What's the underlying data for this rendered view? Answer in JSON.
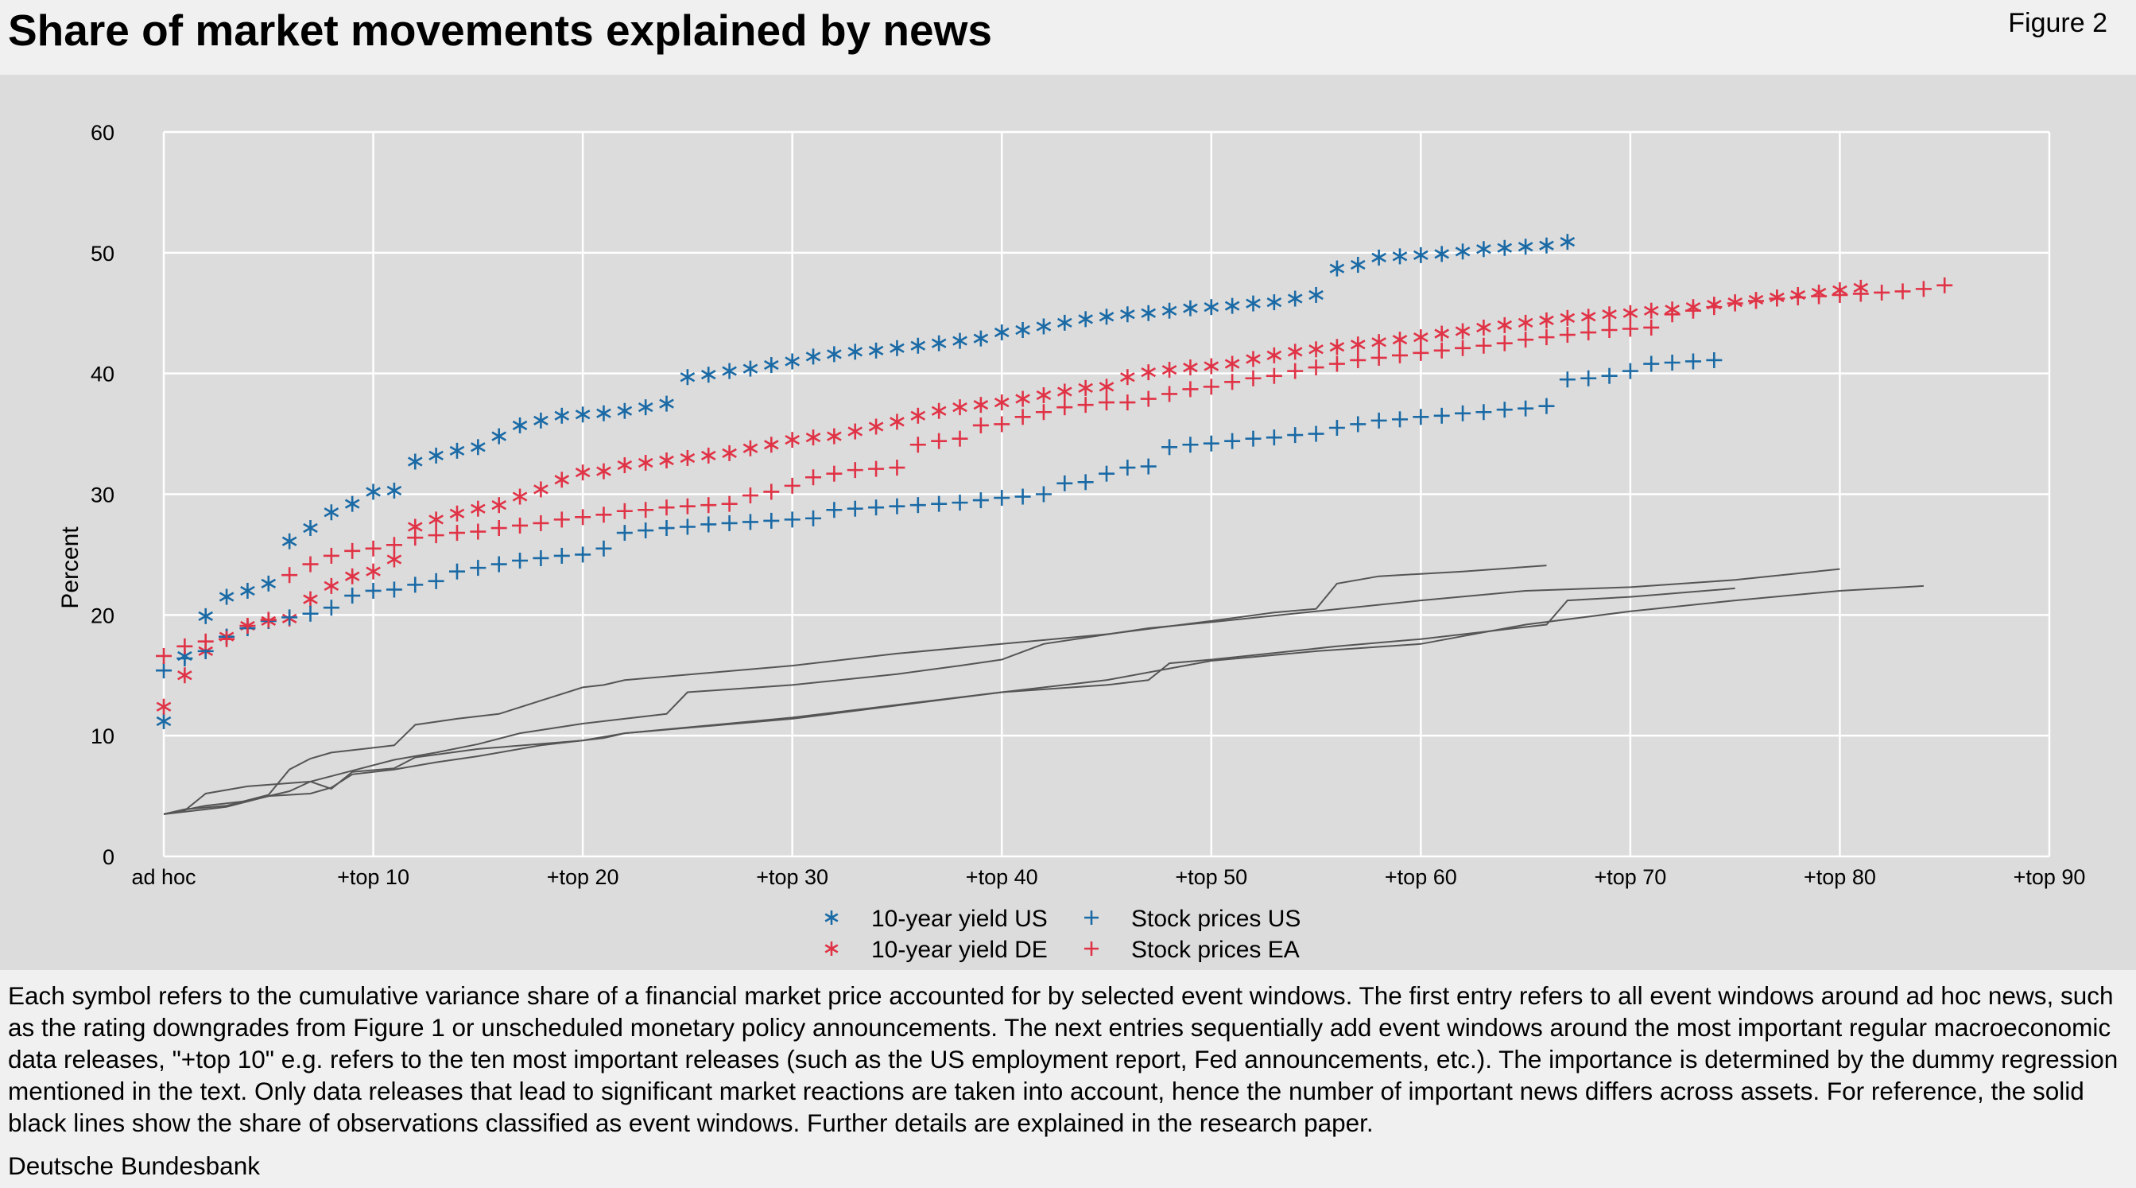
{
  "header": {
    "title": "Share of market movements explained by news",
    "figure_label": "Figure 2"
  },
  "footer": {
    "notes": "Each symbol refers to the cumulative variance share of a financial market price accounted for by selected event windows. The first entry refers to all event windows around ad hoc news, such as the rating downgrades from Figure 1 or unscheduled monetary policy announcements. The next entries sequentially add event windows around the most important regular macroeconomic data releases, \"+top 10\" e.g. refers to the ten most important releases (such as the US employment report, Fed announcements, etc.). The importance is determined by the dummy regression mentioned in the text. Only data releases that lead to significant market reactions are taken into account, hence the number of important news differs across assets. For reference, the solid black lines show the share of observations classified as event windows. Further details are explained in the research paper.",
    "source": "Deutsche Bundesbank"
  },
  "chart_data": {
    "type": "scatter",
    "title": "Share of market movements explained by news",
    "xlabel": "",
    "ylabel": "Percent",
    "xlim": [
      0,
      90
    ],
    "ylim": [
      0,
      60
    ],
    "x_ticks": [
      {
        "value": 0,
        "label": "ad hoc"
      },
      {
        "value": 10,
        "label": "+top 10"
      },
      {
        "value": 20,
        "label": "+top 20"
      },
      {
        "value": 30,
        "label": "+top 30"
      },
      {
        "value": 40,
        "label": "+top 40"
      },
      {
        "value": 50,
        "label": "+top 50"
      },
      {
        "value": 60,
        "label": "+top 60"
      },
      {
        "value": 70,
        "label": "+top 70"
      },
      {
        "value": 80,
        "label": "+top 80"
      },
      {
        "value": 90,
        "label": "+top 90"
      }
    ],
    "y_ticks": [
      0,
      10,
      20,
      30,
      40,
      50,
      60
    ],
    "grid": true,
    "legend_position": "bottom-center",
    "series": [
      {
        "name": "10-year yield US",
        "marker": "asterisk",
        "color": "#1a6aa6",
        "values": [
          11.2,
          16.6,
          19.9,
          21.5,
          22.0,
          22.6,
          26.1,
          27.2,
          28.5,
          29.2,
          30.2,
          30.3,
          32.7,
          33.2,
          33.6,
          33.9,
          34.8,
          35.7,
          36.1,
          36.5,
          36.6,
          36.7,
          36.9,
          37.2,
          37.5,
          39.7,
          39.9,
          40.2,
          40.4,
          40.7,
          41.0,
          41.4,
          41.6,
          41.8,
          41.9,
          42.1,
          42.3,
          42.5,
          42.7,
          42.9,
          43.4,
          43.6,
          43.9,
          44.2,
          44.5,
          44.7,
          44.9,
          45.0,
          45.2,
          45.4,
          45.5,
          45.6,
          45.8,
          45.9,
          46.2,
          46.5,
          48.7,
          49.0,
          49.6,
          49.7,
          49.8,
          49.9,
          50.1,
          50.3,
          50.4,
          50.5,
          50.6,
          50.9
        ]
      },
      {
        "name": "10-year yield DE",
        "marker": "asterisk",
        "color": "#e03346",
        "values": [
          12.4,
          15.0,
          17.0,
          18.2,
          19.1,
          19.5,
          19.7,
          21.3,
          22.4,
          23.2,
          23.6,
          24.6,
          27.3,
          27.9,
          28.4,
          28.8,
          29.1,
          29.8,
          30.4,
          31.2,
          31.8,
          31.9,
          32.4,
          32.6,
          32.8,
          33.0,
          33.2,
          33.4,
          33.8,
          34.1,
          34.5,
          34.7,
          34.8,
          35.2,
          35.6,
          36.0,
          36.5,
          36.9,
          37.2,
          37.4,
          37.6,
          37.9,
          38.2,
          38.5,
          38.8,
          38.9,
          39.7,
          40.1,
          40.3,
          40.5,
          40.6,
          40.8,
          41.2,
          41.5,
          41.8,
          42.0,
          42.2,
          42.4,
          42.6,
          42.8,
          43.0,
          43.3,
          43.5,
          43.8,
          44.0,
          44.2,
          44.4,
          44.6,
          44.7,
          44.9,
          45.0,
          45.2,
          45.3,
          45.5,
          45.7,
          45.9,
          46.1,
          46.3,
          46.5,
          46.7,
          46.9,
          47.1
        ]
      },
      {
        "name": "Stock prices US",
        "marker": "plus",
        "color": "#1a6aa6",
        "values": [
          15.4,
          16.4,
          17.0,
          18.2,
          18.9,
          19.5,
          19.8,
          20.1,
          20.6,
          21.6,
          22.0,
          22.1,
          22.5,
          22.8,
          23.6,
          23.9,
          24.2,
          24.5,
          24.7,
          24.9,
          25.0,
          25.5,
          26.8,
          27.0,
          27.2,
          27.3,
          27.5,
          27.6,
          27.7,
          27.8,
          27.9,
          28.0,
          28.7,
          28.8,
          28.9,
          29.0,
          29.1,
          29.2,
          29.3,
          29.5,
          29.7,
          29.8,
          30.0,
          30.9,
          31.0,
          31.7,
          32.2,
          32.3,
          33.9,
          34.1,
          34.2,
          34.4,
          34.6,
          34.7,
          34.9,
          35.0,
          35.5,
          35.8,
          36.1,
          36.2,
          36.4,
          36.5,
          36.7,
          36.8,
          37.0,
          37.1,
          37.3,
          39.5,
          39.6,
          39.8,
          40.2,
          40.8,
          40.9,
          41.0,
          41.1
        ]
      },
      {
        "name": "Stock prices EA",
        "marker": "plus",
        "color": "#e03346",
        "values": [
          16.6,
          17.4,
          17.8,
          18.0,
          19.1,
          19.6,
          23.3,
          24.2,
          24.9,
          25.3,
          25.5,
          25.8,
          26.4,
          26.6,
          26.8,
          26.9,
          27.2,
          27.4,
          27.6,
          27.9,
          28.1,
          28.3,
          28.6,
          28.7,
          28.9,
          29.0,
          29.1,
          29.2,
          29.9,
          30.2,
          30.7,
          31.4,
          31.7,
          32.0,
          32.1,
          32.2,
          34.1,
          34.4,
          34.6,
          35.7,
          35.8,
          36.4,
          36.8,
          37.2,
          37.4,
          37.6,
          37.6,
          37.9,
          38.3,
          38.7,
          38.9,
          39.3,
          39.6,
          39.8,
          40.2,
          40.5,
          40.8,
          41.1,
          41.3,
          41.5,
          41.7,
          41.9,
          42.1,
          42.3,
          42.5,
          42.8,
          43.0,
          43.2,
          43.4,
          43.6,
          43.7,
          43.8,
          44.9,
          45.2,
          45.5,
          45.8,
          46.0,
          46.2,
          46.3,
          46.4,
          46.5,
          46.6,
          46.7,
          46.8,
          47.0,
          47.3
        ]
      }
    ],
    "reference_lines": [
      {
        "color": "#555555",
        "points": [
          [
            0,
            3.5
          ],
          [
            1,
            3.8
          ],
          [
            2,
            5.2
          ],
          [
            4,
            5.8
          ],
          [
            7,
            6.2
          ],
          [
            8,
            5.6
          ],
          [
            9,
            7.0
          ],
          [
            11,
            7.3
          ],
          [
            12,
            8.2
          ],
          [
            15,
            8.9
          ],
          [
            20,
            9.6
          ],
          [
            22,
            10.2
          ],
          [
            30,
            11.5
          ],
          [
            40,
            13.6
          ],
          [
            45,
            14.2
          ],
          [
            47,
            14.6
          ],
          [
            48,
            16.0
          ],
          [
            50,
            16.3
          ],
          [
            56,
            17.4
          ],
          [
            60,
            18.0
          ],
          [
            63,
            18.6
          ],
          [
            66,
            19.2
          ],
          [
            67,
            21.2
          ],
          [
            70,
            21.5
          ],
          [
            75,
            22.2
          ]
        ]
      },
      {
        "color": "#555555",
        "points": [
          [
            0,
            3.5
          ],
          [
            1,
            3.9
          ],
          [
            3,
            4.2
          ],
          [
            5,
            5.1
          ],
          [
            6,
            7.2
          ],
          [
            7,
            8.1
          ],
          [
            8,
            8.6
          ],
          [
            10,
            9.0
          ],
          [
            11,
            9.2
          ],
          [
            12,
            10.9
          ],
          [
            14,
            11.4
          ],
          [
            16,
            11.8
          ],
          [
            18,
            12.9
          ],
          [
            20,
            14.0
          ],
          [
            21,
            14.2
          ],
          [
            22,
            14.6
          ],
          [
            30,
            15.8
          ],
          [
            35,
            16.8
          ],
          [
            40,
            17.6
          ],
          [
            45,
            18.4
          ],
          [
            50,
            19.5
          ],
          [
            53,
            20.2
          ],
          [
            55,
            20.5
          ],
          [
            56,
            22.6
          ],
          [
            58,
            23.2
          ],
          [
            62,
            23.6
          ],
          [
            66,
            24.1
          ]
        ]
      },
      {
        "color": "#555555",
        "points": [
          [
            0,
            3.5
          ],
          [
            2,
            4.2
          ],
          [
            4,
            4.6
          ],
          [
            5,
            5.0
          ],
          [
            6,
            5.4
          ],
          [
            7,
            6.2
          ],
          [
            9,
            7.1
          ],
          [
            11,
            8.0
          ],
          [
            13,
            8.6
          ],
          [
            15,
            9.3
          ],
          [
            17,
            10.2
          ],
          [
            20,
            11.0
          ],
          [
            22,
            11.4
          ],
          [
            24,
            11.8
          ],
          [
            25,
            13.6
          ],
          [
            30,
            14.2
          ],
          [
            35,
            15.1
          ],
          [
            38,
            15.8
          ],
          [
            40,
            16.3
          ],
          [
            42,
            17.6
          ],
          [
            47,
            18.9
          ],
          [
            50,
            19.4
          ],
          [
            55,
            20.3
          ],
          [
            60,
            21.2
          ],
          [
            65,
            22.0
          ],
          [
            70,
            22.3
          ],
          [
            75,
            22.9
          ],
          [
            80,
            23.8
          ]
        ]
      },
      {
        "color": "#555555",
        "points": [
          [
            0,
            3.5
          ],
          [
            3,
            4.1
          ],
          [
            5,
            5.0
          ],
          [
            7,
            5.2
          ],
          [
            8,
            5.7
          ],
          [
            9,
            6.8
          ],
          [
            11,
            7.2
          ],
          [
            13,
            7.8
          ],
          [
            15,
            8.3
          ],
          [
            18,
            9.2
          ],
          [
            21,
            9.8
          ],
          [
            22,
            10.2
          ],
          [
            30,
            11.4
          ],
          [
            40,
            13.6
          ],
          [
            45,
            14.6
          ],
          [
            50,
            16.2
          ],
          [
            55,
            17.0
          ],
          [
            60,
            17.6
          ],
          [
            65,
            19.2
          ],
          [
            70,
            20.3
          ],
          [
            75,
            21.2
          ],
          [
            80,
            22.0
          ],
          [
            84,
            22.4
          ]
        ]
      }
    ]
  }
}
